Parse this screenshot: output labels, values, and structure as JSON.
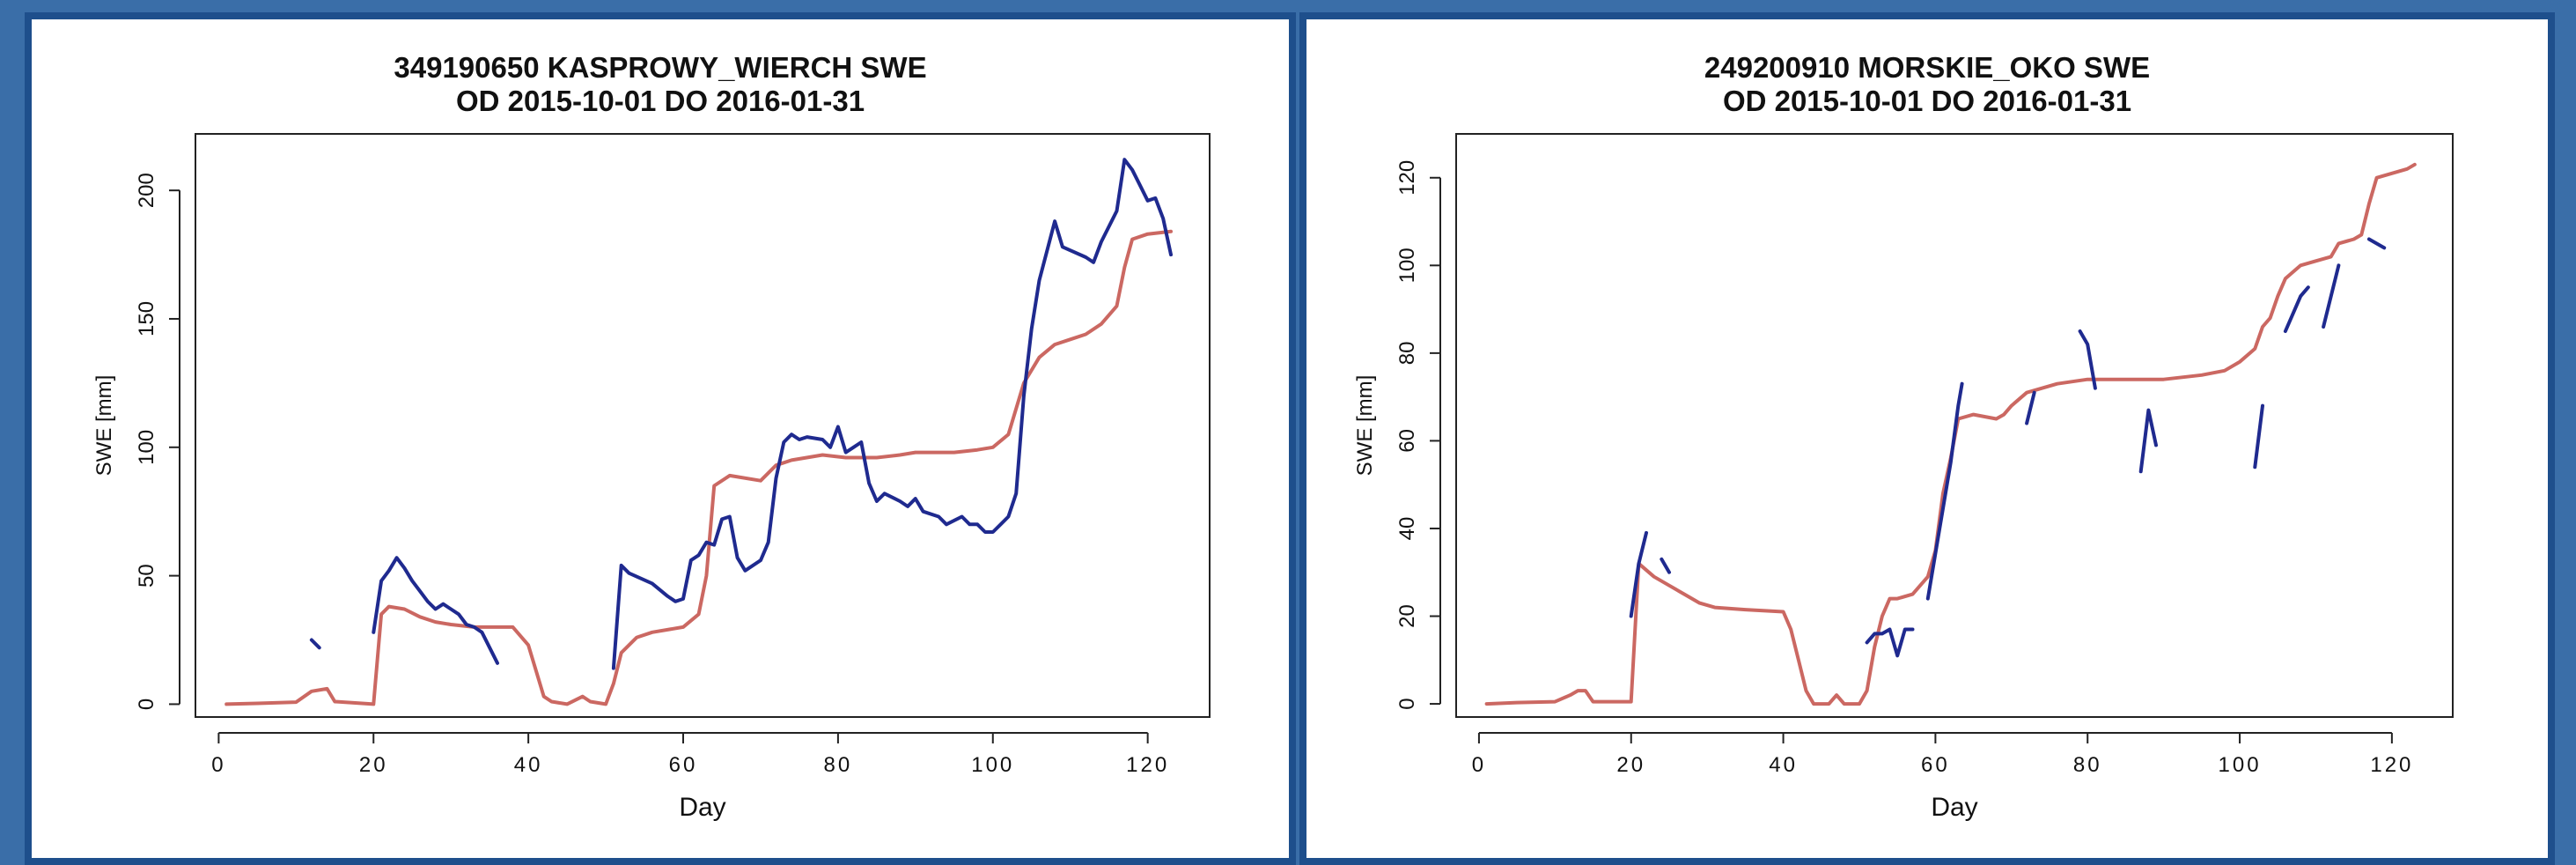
{
  "chart_data": [
    {
      "type": "line",
      "title": "349190650 KASPROWY_WIERCH SWE",
      "subtitle": "OD 2015-10-01 DO 2016-01-31",
      "xlabel": "Day",
      "ylabel": "SWE [mm]",
      "xlim": [
        -3,
        128
      ],
      "ylim": [
        -5,
        222
      ],
      "xticks": [
        0,
        20,
        40,
        60,
        80,
        100,
        120
      ],
      "yticks": [
        0,
        50,
        100,
        150,
        200
      ],
      "grid": false,
      "colors": {
        "observed": "#1f2a8f",
        "modelled": "#c8605a"
      },
      "series": [
        {
          "role": "modelled",
          "segments": [
            [
              [
                1,
                0
              ],
              [
                5,
                0.3
              ],
              [
                10,
                0.8
              ],
              [
                12,
                5
              ],
              [
                14,
                6
              ],
              [
                15,
                1
              ],
              [
                20,
                0
              ],
              [
                21,
                35
              ],
              [
                22,
                38
              ],
              [
                24,
                37
              ],
              [
                26,
                34
              ],
              [
                28,
                32
              ],
              [
                30,
                31
              ],
              [
                33,
                30
              ],
              [
                36,
                30
              ],
              [
                38,
                30
              ],
              [
                40,
                23
              ],
              [
                42,
                3
              ],
              [
                43,
                1
              ],
              [
                45,
                0
              ],
              [
                47,
                3
              ],
              [
                48,
                1
              ],
              [
                50,
                0
              ],
              [
                51,
                8
              ],
              [
                52,
                20
              ],
              [
                54,
                26
              ],
              [
                56,
                28
              ],
              [
                60,
                30
              ],
              [
                62,
                35
              ],
              [
                63,
                50
              ],
              [
                64,
                85
              ],
              [
                66,
                89
              ],
              [
                70,
                87
              ],
              [
                72,
                93
              ],
              [
                74,
                95
              ],
              [
                78,
                97
              ],
              [
                81,
                96
              ],
              [
                85,
                96
              ],
              [
                88,
                97
              ],
              [
                90,
                98
              ],
              [
                95,
                98
              ],
              [
                98,
                99
              ],
              [
                100,
                100
              ],
              [
                102,
                105
              ],
              [
                104,
                125
              ],
              [
                106,
                135
              ],
              [
                108,
                140
              ],
              [
                110,
                142
              ],
              [
                112,
                144
              ],
              [
                114,
                148
              ],
              [
                116,
                155
              ],
              [
                117,
                170
              ],
              [
                118,
                181
              ],
              [
                120,
                183
              ],
              [
                123,
                184
              ]
            ]
          ]
        },
        {
          "role": "observed",
          "segments": [
            [
              [
                12,
                25
              ],
              [
                13,
                22
              ]
            ],
            [
              [
                20,
                28
              ],
              [
                21,
                48
              ],
              [
                22,
                52
              ],
              [
                23,
                57
              ],
              [
                24,
                53
              ],
              [
                25,
                48
              ],
              [
                26,
                44
              ],
              [
                27,
                40
              ],
              [
                28,
                37
              ],
              [
                29,
                39
              ],
              [
                30,
                37
              ],
              [
                31,
                35
              ],
              [
                32,
                31
              ],
              [
                33,
                30
              ],
              [
                34,
                28
              ],
              [
                35,
                22
              ],
              [
                36,
                16
              ]
            ],
            [
              [
                51,
                14
              ],
              [
                52,
                54
              ],
              [
                53,
                51
              ],
              [
                56,
                47
              ],
              [
                58,
                42
              ],
              [
                59,
                40
              ],
              [
                60,
                41
              ],
              [
                61,
                56
              ],
              [
                62,
                58
              ],
              [
                63,
                63
              ],
              [
                64,
                62
              ],
              [
                65,
                72
              ],
              [
                66,
                73
              ],
              [
                67,
                57
              ],
              [
                68,
                52
              ],
              [
                70,
                56
              ],
              [
                71,
                63
              ],
              [
                72,
                88
              ],
              [
                73,
                102
              ],
              [
                74,
                105
              ],
              [
                75,
                103
              ],
              [
                76,
                104
              ],
              [
                78,
                103
              ],
              [
                79,
                100
              ],
              [
                80,
                108
              ],
              [
                81,
                98
              ],
              [
                82,
                100
              ],
              [
                83,
                102
              ],
              [
                84,
                86
              ],
              [
                85,
                79
              ],
              [
                86,
                82
              ],
              [
                88,
                79
              ],
              [
                89,
                77
              ],
              [
                90,
                80
              ],
              [
                91,
                75
              ],
              [
                93,
                73
              ],
              [
                94,
                70
              ],
              [
                96,
                73
              ],
              [
                97,
                70
              ],
              [
                98,
                70
              ],
              [
                99,
                67
              ],
              [
                100,
                67
              ],
              [
                101,
                70
              ],
              [
                102,
                73
              ],
              [
                103,
                82
              ],
              [
                104,
                120
              ],
              [
                105,
                146
              ],
              [
                106,
                165
              ],
              [
                108,
                188
              ],
              [
                109,
                178
              ],
              [
                112,
                174
              ],
              [
                113,
                172
              ],
              [
                114,
                180
              ],
              [
                115,
                186
              ],
              [
                116,
                192
              ],
              [
                117,
                212
              ],
              [
                118,
                208
              ],
              [
                119,
                202
              ],
              [
                120,
                196
              ],
              [
                121,
                197
              ],
              [
                122,
                189
              ],
              [
                123,
                175
              ]
            ]
          ]
        }
      ]
    },
    {
      "type": "line",
      "title": "249200910 MORSKIE_OKO SWE",
      "subtitle": "OD 2015-10-01 DO 2016-01-31",
      "xlabel": "Day",
      "ylabel": "SWE [mm]",
      "xlim": [
        -3,
        128
      ],
      "ylim": [
        -3,
        130
      ],
      "xticks": [
        0,
        20,
        40,
        60,
        80,
        100,
        120
      ],
      "yticks": [
        0,
        20,
        40,
        60,
        80,
        100,
        120
      ],
      "grid": false,
      "colors": {
        "observed": "#1f2a8f",
        "modelled": "#c8605a"
      },
      "series": [
        {
          "role": "modelled",
          "segments": [
            [
              [
                1,
                0
              ],
              [
                5,
                0.3
              ],
              [
                10,
                0.5
              ],
              [
                12,
                2
              ],
              [
                13,
                3
              ],
              [
                14,
                3
              ],
              [
                15,
                0.5
              ],
              [
                20,
                0.5
              ],
              [
                21,
                32
              ],
              [
                23,
                29
              ],
              [
                25,
                27
              ],
              [
                27,
                25
              ],
              [
                29,
                23
              ],
              [
                31,
                22
              ],
              [
                35,
                21.5
              ],
              [
                40,
                21
              ],
              [
                41,
                17
              ],
              [
                42,
                10
              ],
              [
                43,
                3
              ],
              [
                44,
                0
              ],
              [
                46,
                0
              ],
              [
                47,
                2
              ],
              [
                48,
                0
              ],
              [
                50,
                0
              ],
              [
                51,
                3
              ],
              [
                52,
                13
              ],
              [
                53,
                20
              ],
              [
                54,
                24
              ],
              [
                55,
                24
              ],
              [
                57,
                25
              ],
              [
                59,
                29
              ],
              [
                60,
                35
              ],
              [
                61,
                48
              ],
              [
                62,
                56
              ],
              [
                63,
                65
              ],
              [
                65,
                66
              ],
              [
                68,
                65
              ],
              [
                69,
                66
              ],
              [
                70,
                68
              ],
              [
                72,
                71
              ],
              [
                74,
                72
              ],
              [
                76,
                73
              ],
              [
                80,
                74
              ],
              [
                82,
                74
              ],
              [
                85,
                74
              ],
              [
                90,
                74
              ],
              [
                95,
                75
              ],
              [
                98,
                76
              ],
              [
                100,
                78
              ],
              [
                102,
                81
              ],
              [
                103,
                86
              ],
              [
                104,
                88
              ],
              [
                105,
                93
              ],
              [
                106,
                97
              ],
              [
                108,
                100
              ],
              [
                110,
                101
              ],
              [
                112,
                102
              ],
              [
                113,
                105
              ],
              [
                115,
                106
              ],
              [
                116,
                107
              ],
              [
                117,
                114
              ],
              [
                118,
                120
              ],
              [
                120,
                121
              ],
              [
                122,
                122
              ],
              [
                123,
                123
              ]
            ]
          ]
        },
        {
          "role": "observed",
          "segments": [
            [
              [
                20,
                20
              ],
              [
                21,
                32
              ],
              [
                22,
                39
              ]
            ],
            [
              [
                24,
                33
              ],
              [
                25,
                30
              ]
            ],
            [
              [
                51,
                14
              ],
              [
                52,
                16
              ],
              [
                53,
                16
              ],
              [
                54,
                17
              ],
              [
                55,
                11
              ],
              [
                56,
                17
              ],
              [
                57,
                17
              ]
            ],
            [
              [
                59,
                24
              ],
              [
                62,
                55
              ],
              [
                63,
                68
              ],
              [
                63.5,
                73
              ]
            ],
            [
              [
                72,
                64
              ],
              [
                73,
                71
              ]
            ],
            [
              [
                79,
                85
              ],
              [
                80,
                82
              ],
              [
                81,
                72
              ]
            ],
            [
              [
                87,
                53
              ],
              [
                88,
                67
              ],
              [
                89,
                59
              ]
            ],
            [
              [
                102,
                54
              ],
              [
                103,
                68
              ]
            ],
            [
              [
                106,
                85
              ],
              [
                108,
                93
              ],
              [
                109,
                95
              ]
            ],
            [
              [
                111,
                86
              ],
              [
                113,
                100
              ]
            ],
            [
              [
                117,
                106
              ],
              [
                119,
                104
              ]
            ]
          ]
        }
      ]
    }
  ]
}
